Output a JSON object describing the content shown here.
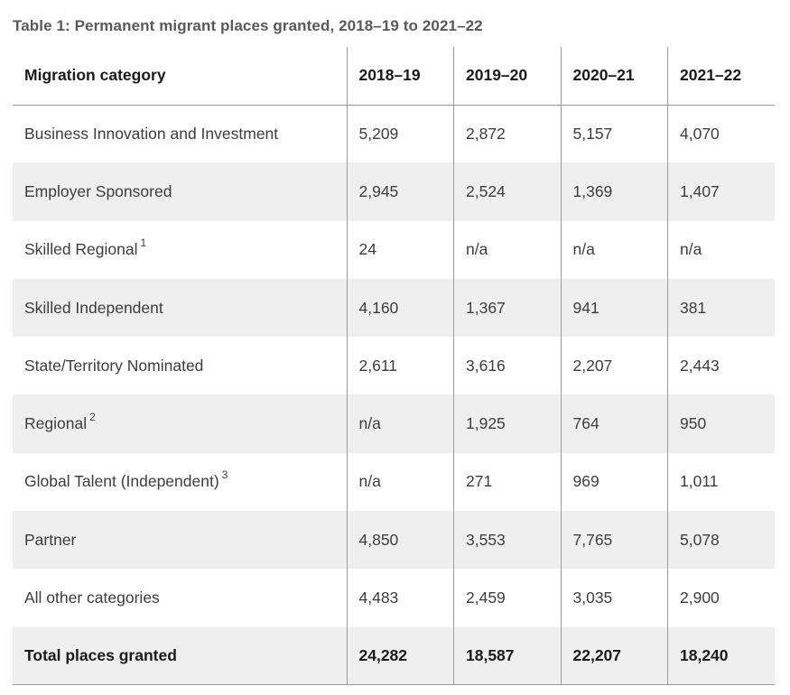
{
  "caption": "Table 1: Permanent migrant places granted, 2018–19 to 2021–22",
  "table": {
    "headers": [
      "Migration category",
      "2018–19",
      "2019–20",
      "2020–21",
      "2021–22"
    ],
    "rows": [
      {
        "category": "Business Innovation and Investment",
        "note": "",
        "values": [
          "5,209",
          "2,872",
          "5,157",
          "4,070"
        ]
      },
      {
        "category": "Employer Sponsored",
        "note": "",
        "values": [
          "2,945",
          "2,524",
          "1,369",
          "1,407"
        ]
      },
      {
        "category": "Skilled Regional",
        "note": "1",
        "values": [
          "24",
          "n/a",
          "n/a",
          "n/a"
        ]
      },
      {
        "category": "Skilled Independent",
        "note": "",
        "values": [
          "4,160",
          "1,367",
          "941",
          "381"
        ]
      },
      {
        "category": "State/Territory Nominated",
        "note": "",
        "values": [
          "2,611",
          "3,616",
          "2,207",
          "2,443"
        ]
      },
      {
        "category": "Regional",
        "note": "2",
        "values": [
          "n/a",
          "1,925",
          "764",
          "950"
        ]
      },
      {
        "category": "Global Talent (Independent)",
        "note": "3",
        "values": [
          "n/a",
          "271",
          "969",
          "1,011"
        ]
      },
      {
        "category": "Partner",
        "note": "",
        "values": [
          "4,850",
          "3,553",
          "7,765",
          "5,078"
        ]
      },
      {
        "category": "All other categories",
        "note": "",
        "values": [
          "4,483",
          "2,459",
          "3,035",
          "2,900"
        ]
      }
    ],
    "total": {
      "category": "Total places granted",
      "values": [
        "24,282",
        "18,587",
        "22,207",
        "18,240"
      ]
    }
  }
}
